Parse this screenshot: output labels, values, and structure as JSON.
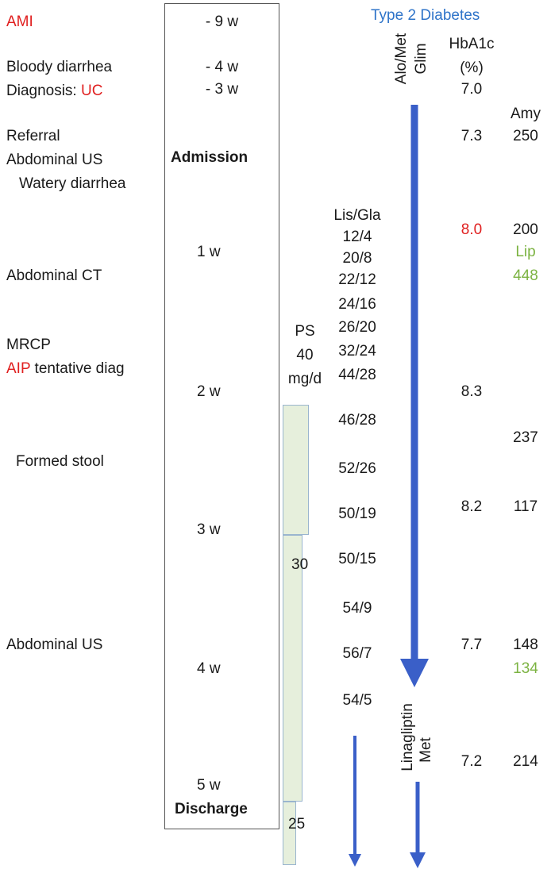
{
  "events": {
    "ami": "AMI",
    "bloody_diarrhea": "Bloody diarrhea",
    "diagnosis_prefix": "Diagnosis: ",
    "diagnosis_uc": "UC",
    "referral": "Referral",
    "abdominal_us_1": "Abdominal US",
    "watery_diarrhea": "Watery diarrhea",
    "abdominal_ct": "Abdominal CT",
    "mrcp": "MRCP",
    "aip": "AIP",
    "aip_rest": " tentative diag",
    "formed_stool": "Formed stool",
    "abdominal_us_2": "Abdominal US"
  },
  "timeline": {
    "w_minus9": "- 9 w",
    "w_minus4": "- 4 w",
    "w_minus3": "- 3 w",
    "admission": "Admission",
    "w1": "1 w",
    "w2": "2 w",
    "w3": "3 w",
    "w4": "4 w",
    "w5": "5 w",
    "discharge": "Discharge"
  },
  "ps": {
    "label": "PS",
    "dose1": "40",
    "unit": "mg/d",
    "dose2": "30",
    "dose3": "25"
  },
  "lis_gla": {
    "header": "Lis/Gla",
    "values": [
      "12/4",
      "20/8",
      "22/12",
      "24/16",
      "26/20",
      "32/24",
      "44/28",
      "46/28",
      "52/26",
      "50/19",
      "50/15",
      "54/9",
      "56/7",
      "54/5"
    ]
  },
  "diabetes": {
    "title": "Type 2 Diabetes",
    "drug1": "Alo/Met",
    "drug2": "Glim",
    "drug3": "Linagliptin",
    "drug4": "Met"
  },
  "hba1c": {
    "header": "HbA1c",
    "unit": "(%)",
    "values": [
      "7.0",
      "7.3",
      "8.0",
      "8.3",
      "8.2",
      "7.7",
      "7.2"
    ]
  },
  "amy": {
    "header": "Amy",
    "values": [
      "250",
      "200",
      "237",
      "117",
      "148",
      "214"
    ],
    "lip_label": "Lip",
    "lip_values": [
      "448",
      "134"
    ]
  },
  "colors": {
    "red": "#e02020",
    "green": "#7cb342",
    "blue": "#2f74c9",
    "arrow": "#3a5fc8",
    "ps_fill": "#e6efdc"
  }
}
